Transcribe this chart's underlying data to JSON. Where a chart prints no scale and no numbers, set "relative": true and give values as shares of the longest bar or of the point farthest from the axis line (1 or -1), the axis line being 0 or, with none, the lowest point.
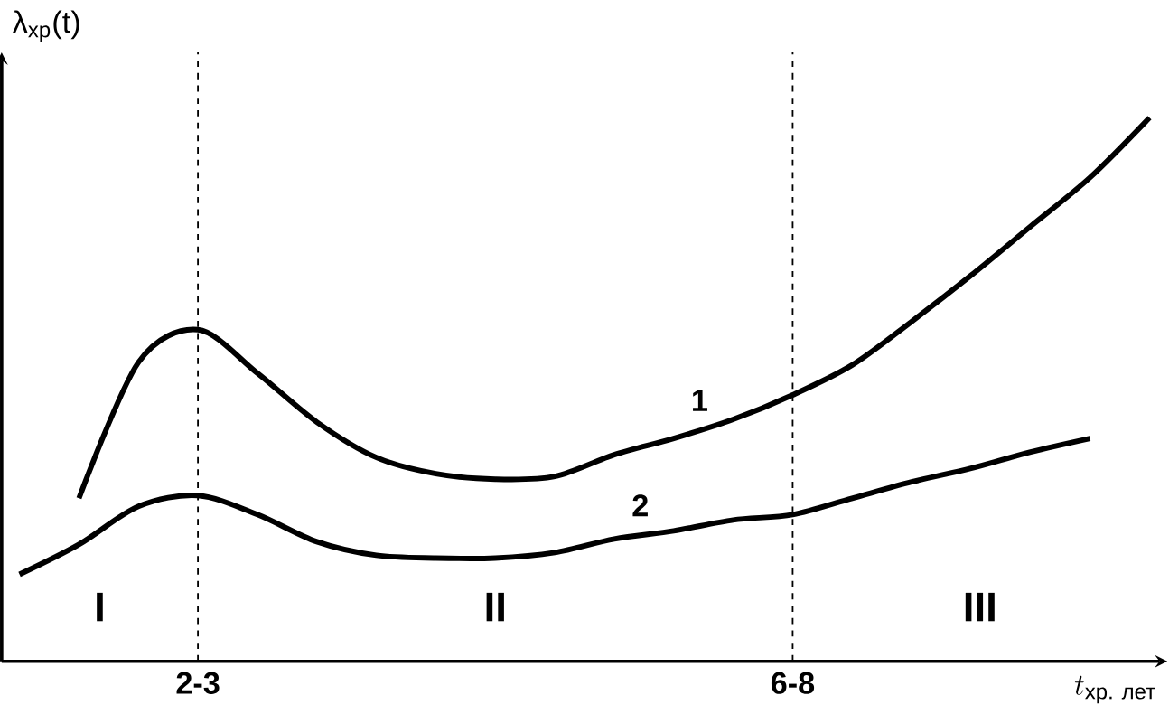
{
  "chart_data": {
    "type": "line",
    "relative": true,
    "xlabel": "t_{\\text{хр. лет}}",
    "ylabel": "λ$_{хр}$(t)",
    "grid": "x",
    "categories": [
      null,
      null,
      null,
      "2-3",
      null,
      null,
      null,
      null,
      null,
      null,
      null,
      null,
      null,
      "6-8",
      null,
      null,
      null,
      null,
      null,
      null
    ],
    "series": [
      {
        "name": "1",
        "color": "#000000",
        "values": [
          null,
          0.3,
          0.55,
          0.61,
          0.53,
          0.44,
          0.375,
          0.345,
          0.335,
          0.34,
          0.38,
          0.41,
          0.445,
          0.49,
          0.545,
          0.625,
          0.71,
          0.8,
          0.89,
          1.0
        ]
      },
      {
        "name": "2",
        "color": "#000000",
        "values": [
          0.16,
          0.215,
          0.285,
          0.305,
          0.27,
          0.22,
          0.195,
          0.19,
          0.19,
          0.2,
          0.225,
          0.24,
          0.26,
          0.27,
          0.3,
          0.33,
          0.355,
          0.385,
          0.41,
          null
        ]
      }
    ],
    "annotations": [
      "I",
      "II",
      "III"
    ]
  }
}
